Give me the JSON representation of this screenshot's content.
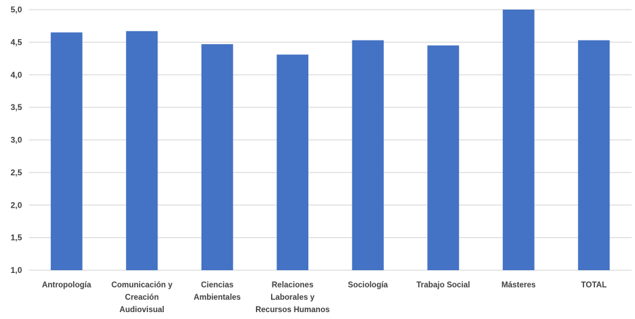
{
  "chart_data": {
    "type": "bar",
    "categories": [
      [
        "Antropología"
      ],
      [
        "Comunicación y",
        "Creación",
        "Audiovisual"
      ],
      [
        "Ciencias",
        "Ambientales"
      ],
      [
        "Relaciones",
        "Laborales y",
        "Recursos Humanos"
      ],
      [
        "Sociología"
      ],
      [
        "Trabajo Social"
      ],
      [
        "Másteres"
      ],
      [
        "TOTAL"
      ]
    ],
    "values": [
      4.65,
      4.67,
      4.47,
      4.31,
      4.53,
      4.45,
      5.0,
      4.53
    ],
    "yticks": [
      "1,0",
      "1,5",
      "2,0",
      "2,5",
      "3,0",
      "3,5",
      "4,0",
      "4,5",
      "5,0"
    ],
    "ylim": [
      1.0,
      5.0
    ],
    "title": "",
    "xlabel": "",
    "ylabel": "",
    "grid": true,
    "bar_color": "#4472C4",
    "grid_color": "#D9D9D9"
  }
}
